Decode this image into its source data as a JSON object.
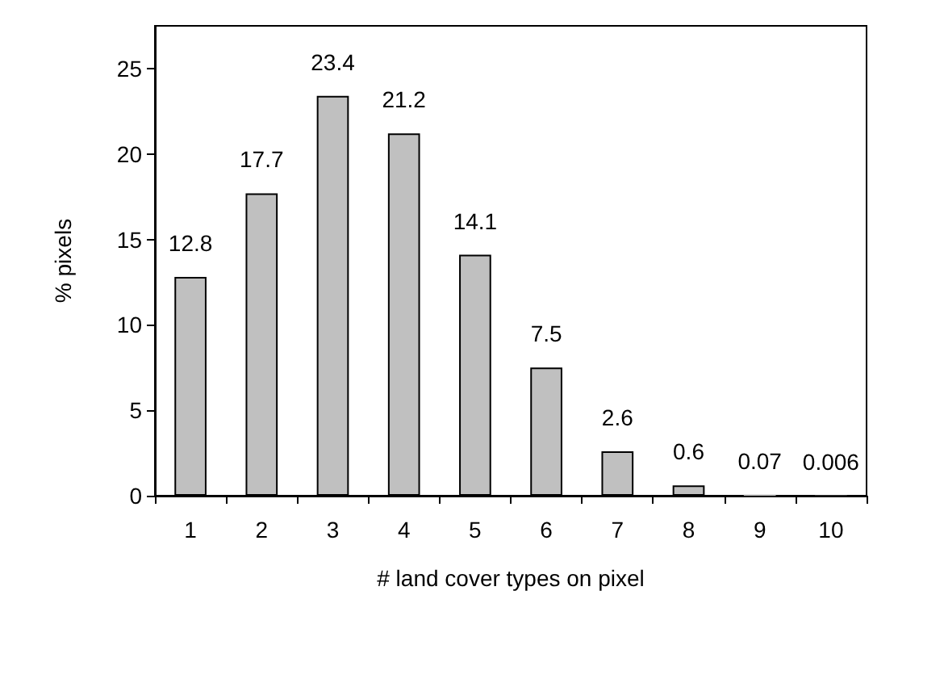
{
  "chart_data": {
    "type": "bar",
    "xlabel": "# land cover types on pixel",
    "ylabel": "% pixels",
    "categories": [
      "1",
      "2",
      "3",
      "4",
      "5",
      "6",
      "7",
      "8",
      "9",
      "10"
    ],
    "values": [
      12.8,
      17.7,
      23.4,
      21.2,
      14.1,
      7.5,
      2.6,
      0.6,
      0.07,
      0.006
    ],
    "color": "#c0c0c0",
    "data_labels": true,
    "ylim": [
      0,
      27.5
    ],
    "yticks": [
      0,
      5,
      10,
      15,
      20,
      25
    ],
    "grid": false
  }
}
